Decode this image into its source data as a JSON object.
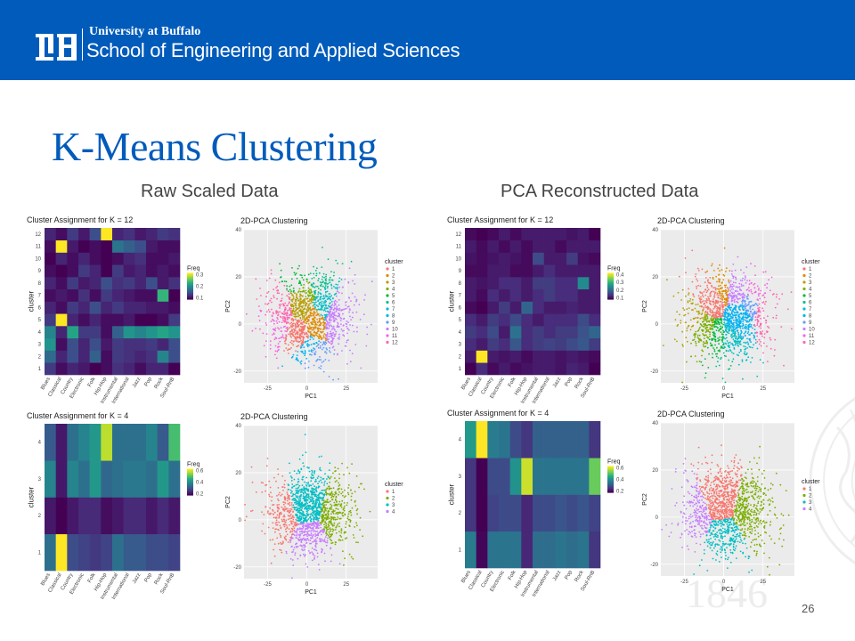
{
  "header": {
    "university": "University at Buffalo",
    "school": "School of Engineering and Applied Sciences",
    "logo_text": "UB"
  },
  "slide": {
    "title": "K-Means Clustering",
    "subtitle_left": "Raw Scaled Data",
    "subtitle_right": "PCA Reconstructed Data",
    "page_number": "26",
    "watermark_text": "1846"
  },
  "colors": {
    "brand_blue": "#005bbb",
    "viridis": [
      "#440154",
      "#472d7b",
      "#3b528b",
      "#2c728e",
      "#21908d",
      "#27ad81",
      "#5cc863",
      "#aadc32",
      "#fde725"
    ],
    "k12": [
      "#f8766d",
      "#de8c00",
      "#b79f00",
      "#7cae00",
      "#00ba38",
      "#00c08b",
      "#00bfc4",
      "#00b4f0",
      "#619cff",
      "#c77cff",
      "#f564e3",
      "#ff64b0"
    ],
    "k4": [
      "#f8766d",
      "#7cae00",
      "#00bfc4",
      "#c77cff"
    ]
  },
  "genres": [
    "Blues",
    "Classical",
    "Country",
    "Electronic",
    "Folk",
    "Hip-Hop",
    "Instrumental",
    "International",
    "Jazz",
    "Pop",
    "Rock",
    "Soul-RnB"
  ],
  "charts": {
    "heat_k12_raw": {
      "title": "Cluster Assignment for K = 12",
      "ylabel": "cluster",
      "clusters": [
        "1",
        "2",
        "3",
        "4",
        "5",
        "6",
        "7",
        "8",
        "9",
        "10",
        "11",
        "12"
      ],
      "legend_title": "Freq",
      "legend_ticks": [
        "0.3",
        "0.2",
        "0.1"
      ]
    },
    "heat_k4_raw": {
      "title": "Cluster Assignment for K = 4",
      "ylabel": "cluster",
      "clusters": [
        "1",
        "2",
        "3",
        "4"
      ],
      "legend_title": "Freq",
      "legend_ticks": [
        "0.6",
        "0.4",
        "0.2"
      ]
    },
    "heat_k12_pca": {
      "title": "Cluster Assignment for K = 12",
      "ylabel": "cluster",
      "clusters": [
        "1",
        "2",
        "3",
        "4",
        "5",
        "6",
        "7",
        "8",
        "9",
        "10",
        "11",
        "12"
      ],
      "legend_title": "Freq",
      "legend_ticks": [
        "0.4",
        "0.3",
        "0.2",
        "0.1"
      ]
    },
    "heat_k4_pca": {
      "title": "Cluster Assignment for K = 4",
      "ylabel": "cluster",
      "clusters": [
        "1",
        "2",
        "3",
        "4"
      ],
      "legend_title": "Freq",
      "legend_ticks": [
        "0.6",
        "0.4",
        "0.2"
      ]
    },
    "scatter_common": {
      "title": "2D-PCA Clustering",
      "xlabel": "PC1",
      "ylabel": "PC2",
      "xticks": [
        "-25",
        "0",
        "25"
      ],
      "yticks": [
        "40",
        "20",
        "0",
        "-20"
      ],
      "legend_title": "cluster"
    },
    "scatter_k12_labels": [
      "1",
      "2",
      "3",
      "4",
      "5",
      "6",
      "7",
      "8",
      "9",
      "10",
      "11",
      "12"
    ],
    "scatter_k4_labels": [
      "1",
      "2",
      "3",
      "4"
    ]
  },
  "chart_data": [
    {
      "type": "heatmap",
      "title": "Cluster Assignment for K = 12",
      "xlabel": "",
      "ylabel": "cluster",
      "x": [
        "Blues",
        "Classical",
        "Country",
        "Electronic",
        "Folk",
        "Hip-Hop",
        "Instrumental",
        "International",
        "Jazz",
        "Pop",
        "Rock",
        "Soul-RnB"
      ],
      "y": [
        "1",
        "2",
        "3",
        "4",
        "5",
        "6",
        "7",
        "8",
        "9",
        "10",
        "11",
        "12"
      ],
      "values": [
        [
          0.1,
          0.06,
          0.08,
          0.07,
          0.05,
          0.06,
          0.09,
          0.08,
          0.06,
          0.08,
          0.08,
          0.05
        ],
        [
          0.15,
          0.08,
          0.12,
          0.08,
          0.14,
          0.06,
          0.1,
          0.09,
          0.08,
          0.09,
          0.18,
          0.12
        ],
        [
          0.2,
          0.06,
          0.12,
          0.08,
          0.12,
          0.07,
          0.1,
          0.09,
          0.09,
          0.1,
          0.08,
          0.12
        ],
        [
          0.18,
          0.08,
          0.22,
          0.1,
          0.1,
          0.06,
          0.14,
          0.2,
          0.18,
          0.2,
          0.22,
          0.2
        ],
        [
          0.1,
          0.34,
          0.08,
          0.06,
          0.08,
          0.06,
          0.06,
          0.07,
          0.05,
          0.05,
          0.06,
          0.1
        ],
        [
          0.08,
          0.06,
          0.1,
          0.08,
          0.12,
          0.08,
          0.1,
          0.08,
          0.08,
          0.07,
          0.07,
          0.06
        ],
        [
          0.06,
          0.07,
          0.06,
          0.09,
          0.06,
          0.1,
          0.08,
          0.07,
          0.06,
          0.06,
          0.24,
          0.05
        ],
        [
          0.08,
          0.06,
          0.1,
          0.07,
          0.08,
          0.12,
          0.09,
          0.1,
          0.08,
          0.12,
          0.07,
          0.09
        ],
        [
          0.06,
          0.05,
          0.06,
          0.1,
          0.08,
          0.05,
          0.1,
          0.07,
          0.08,
          0.06,
          0.07,
          0.06
        ],
        [
          0.05,
          0.08,
          0.06,
          0.08,
          0.06,
          0.05,
          0.06,
          0.08,
          0.09,
          0.06,
          0.06,
          0.07
        ],
        [
          0.06,
          0.34,
          0.07,
          0.05,
          0.06,
          0.05,
          0.16,
          0.14,
          0.12,
          0.07,
          0.06,
          0.06
        ],
        [
          0.08,
          0.06,
          0.1,
          0.07,
          0.12,
          0.34,
          0.08,
          0.09,
          0.07,
          0.08,
          0.1,
          0.09
        ]
      ],
      "legend_title": "Freq"
    },
    {
      "type": "scatter",
      "title": "2D-PCA Clustering",
      "xlabel": "PC1",
      "ylabel": "PC2",
      "xlim": [
        -40,
        45
      ],
      "ylim": [
        -25,
        40
      ],
      "legend_title": "cluster",
      "series": [
        {
          "name": "1",
          "center": [
            -5,
            -5
          ]
        },
        {
          "name": "2",
          "center": [
            5,
            2
          ]
        },
        {
          "name": "3",
          "center": [
            -2,
            8
          ]
        },
        {
          "name": "4",
          "center": [
            0,
            15
          ]
        },
        {
          "name": "5",
          "center": [
            -3,
            20
          ]
        },
        {
          "name": "6",
          "center": [
            5,
            18
          ]
        },
        {
          "name": "7",
          "center": [
            10,
            8
          ]
        },
        {
          "name": "8",
          "center": [
            0,
            -12
          ]
        },
        {
          "name": "9",
          "center": [
            3,
            -15
          ]
        },
        {
          "name": "10",
          "center": [
            18,
            3
          ]
        },
        {
          "name": "11",
          "center": [
            -20,
            0
          ]
        },
        {
          "name": "12",
          "center": [
            -18,
            5
          ]
        }
      ]
    },
    {
      "type": "heatmap",
      "title": "Cluster Assignment for K = 4",
      "xlabel": "",
      "ylabel": "cluster",
      "x": [
        "Blues",
        "Classical",
        "Country",
        "Electronic",
        "Folk",
        "Hip-Hop",
        "Instrumental",
        "International",
        "Jazz",
        "Pop",
        "Rock",
        "Soul-RnB"
      ],
      "y": [
        "1",
        "2",
        "3",
        "4"
      ],
      "values": [
        [
          0.3,
          0.68,
          0.22,
          0.2,
          0.18,
          0.2,
          0.3,
          0.25,
          0.25,
          0.22,
          0.22,
          0.2
        ],
        [
          0.12,
          0.08,
          0.12,
          0.15,
          0.15,
          0.1,
          0.12,
          0.15,
          0.15,
          0.12,
          0.15,
          0.12
        ],
        [
          0.35,
          0.12,
          0.35,
          0.3,
          0.4,
          0.28,
          0.3,
          0.32,
          0.32,
          0.3,
          0.4,
          0.3
        ],
        [
          0.25,
          0.12,
          0.3,
          0.35,
          0.4,
          0.62,
          0.3,
          0.3,
          0.3,
          0.35,
          0.25,
          0.5
        ]
      ],
      "legend_title": "Freq"
    },
    {
      "type": "scatter",
      "title": "2D-PCA Clustering",
      "xlabel": "PC1",
      "ylabel": "PC2",
      "xlim": [
        -40,
        45
      ],
      "ylim": [
        -25,
        40
      ],
      "legend_title": "cluster",
      "series": [
        {
          "name": "1",
          "center": [
            -18,
            2
          ]
        },
        {
          "name": "2",
          "center": [
            20,
            3
          ]
        },
        {
          "name": "3",
          "center": [
            0,
            10
          ]
        },
        {
          "name": "4",
          "center": [
            2,
            -12
          ]
        }
      ]
    },
    {
      "type": "heatmap",
      "title": "Cluster Assignment for K = 12",
      "xlabel": "",
      "ylabel": "cluster",
      "x": [
        "Blues",
        "Classical",
        "Country",
        "Electronic",
        "Folk",
        "Hip-Hop",
        "Instrumental",
        "International",
        "Jazz",
        "Pop",
        "Rock",
        "Soul-RnB"
      ],
      "y": [
        "1",
        "2",
        "3",
        "4",
        "5",
        "6",
        "7",
        "8",
        "9",
        "10",
        "11",
        "12"
      ],
      "values": [
        [
          0.05,
          0.1,
          0.06,
          0.08,
          0.06,
          0.07,
          0.08,
          0.08,
          0.07,
          0.09,
          0.08,
          0.05
        ],
        [
          0.08,
          0.45,
          0.08,
          0.07,
          0.08,
          0.06,
          0.08,
          0.08,
          0.07,
          0.08,
          0.07,
          0.06
        ],
        [
          0.1,
          0.08,
          0.12,
          0.1,
          0.16,
          0.1,
          0.12,
          0.13,
          0.12,
          0.14,
          0.16,
          0.12
        ],
        [
          0.12,
          0.1,
          0.14,
          0.08,
          0.2,
          0.1,
          0.12,
          0.1,
          0.12,
          0.12,
          0.15,
          0.18
        ],
        [
          0.1,
          0.08,
          0.12,
          0.1,
          0.14,
          0.1,
          0.08,
          0.1,
          0.1,
          0.1,
          0.14,
          0.1
        ],
        [
          0.06,
          0.05,
          0.08,
          0.12,
          0.08,
          0.18,
          0.1,
          0.08,
          0.08,
          0.09,
          0.08,
          0.08
        ],
        [
          0.08,
          0.06,
          0.1,
          0.08,
          0.1,
          0.08,
          0.1,
          0.12,
          0.1,
          0.1,
          0.08,
          0.08
        ],
        [
          0.08,
          0.07,
          0.08,
          0.1,
          0.1,
          0.08,
          0.12,
          0.12,
          0.1,
          0.1,
          0.24,
          0.08
        ],
        [
          0.06,
          0.06,
          0.08,
          0.08,
          0.06,
          0.06,
          0.08,
          0.1,
          0.08,
          0.08,
          0.08,
          0.08
        ],
        [
          0.07,
          0.06,
          0.07,
          0.08,
          0.07,
          0.06,
          0.14,
          0.08,
          0.08,
          0.12,
          0.07,
          0.06
        ],
        [
          0.08,
          0.06,
          0.08,
          0.06,
          0.08,
          0.06,
          0.08,
          0.08,
          0.06,
          0.08,
          0.08,
          0.08
        ],
        [
          0.06,
          0.05,
          0.06,
          0.08,
          0.06,
          0.08,
          0.08,
          0.08,
          0.08,
          0.07,
          0.08,
          0.05
        ]
      ],
      "legend_title": "Freq"
    },
    {
      "type": "scatter",
      "title": "2D-PCA Clustering",
      "xlabel": "PC1",
      "ylabel": "PC2",
      "xlim": [
        -40,
        45
      ],
      "ylim": [
        -25,
        40
      ],
      "legend_title": "cluster",
      "series": [
        {
          "name": "1",
          "center": [
            -8,
            14
          ]
        },
        {
          "name": "2",
          "center": [
            -3,
            18
          ]
        },
        {
          "name": "3",
          "center": [
            -20,
            0
          ]
        },
        {
          "name": "4",
          "center": [
            -15,
            -5
          ]
        },
        {
          "name": "5",
          "center": [
            -5,
            -10
          ]
        },
        {
          "name": "6",
          "center": [
            0,
            -14
          ]
        },
        {
          "name": "7",
          "center": [
            5,
            -10
          ]
        },
        {
          "name": "8",
          "center": [
            12,
            2
          ]
        },
        {
          "name": "9",
          "center": [
            18,
            8
          ]
        },
        {
          "name": "10",
          "center": [
            10,
            16
          ]
        },
        {
          "name": "11",
          "center": [
            20,
            14
          ]
        },
        {
          "name": "12",
          "center": [
            25,
            5
          ]
        }
      ]
    },
    {
      "type": "heatmap",
      "title": "Cluster Assignment for K = 4",
      "xlabel": "",
      "ylabel": "cluster",
      "x": [
        "Blues",
        "Classical",
        "Country",
        "Electronic",
        "Folk",
        "Hip-Hop",
        "Instrumental",
        "International",
        "Jazz",
        "Pop",
        "Rock",
        "Soul-RnB"
      ],
      "y": [
        "1",
        "2",
        "3",
        "4"
      ],
      "values": [
        [
          0.32,
          0.06,
          0.3,
          0.3,
          0.3,
          0.12,
          0.28,
          0.28,
          0.3,
          0.28,
          0.3,
          0.15
        ],
        [
          0.15,
          0.05,
          0.18,
          0.2,
          0.2,
          0.12,
          0.2,
          0.2,
          0.22,
          0.2,
          0.22,
          0.18
        ],
        [
          0.15,
          0.05,
          0.2,
          0.2,
          0.38,
          0.65,
          0.3,
          0.3,
          0.3,
          0.3,
          0.3,
          0.55
        ],
        [
          0.4,
          0.7,
          0.32,
          0.3,
          0.2,
          0.15,
          0.25,
          0.25,
          0.25,
          0.25,
          0.25,
          0.15
        ]
      ],
      "legend_title": "Freq"
    },
    {
      "type": "scatter",
      "title": "2D-PCA Clustering",
      "xlabel": "PC1",
      "ylabel": "PC2",
      "xlim": [
        -40,
        45
      ],
      "ylim": [
        -25,
        40
      ],
      "legend_title": "cluster",
      "series": [
        {
          "name": "1",
          "center": [
            -2,
            10
          ]
        },
        {
          "name": "2",
          "center": [
            18,
            3
          ]
        },
        {
          "name": "3",
          "center": [
            0,
            -12
          ]
        },
        {
          "name": "4",
          "center": [
            -20,
            0
          ]
        }
      ]
    }
  ]
}
